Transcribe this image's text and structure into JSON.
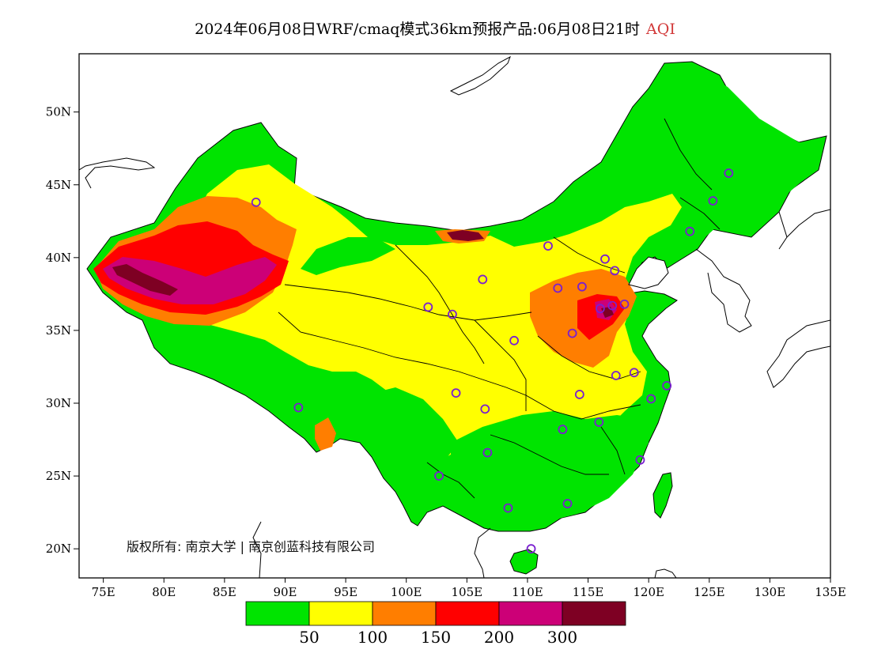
{
  "title": {
    "main": "2024年06月08日WRF/cmaq模式36km预报产品:06月08日21时",
    "product": "AQI"
  },
  "axes": {
    "y_ticks": [
      {
        "value": 50,
        "label": "50N"
      },
      {
        "value": 45,
        "label": "45N"
      },
      {
        "value": 40,
        "label": "40N"
      },
      {
        "value": 35,
        "label": "35N"
      },
      {
        "value": 30,
        "label": "30N"
      },
      {
        "value": 25,
        "label": "25N"
      },
      {
        "value": 20,
        "label": "20N"
      }
    ],
    "x_ticks": [
      {
        "value": 75,
        "label": "75E"
      },
      {
        "value": 80,
        "label": "80E"
      },
      {
        "value": 85,
        "label": "85E"
      },
      {
        "value": 90,
        "label": "90E"
      },
      {
        "value": 95,
        "label": "95E"
      },
      {
        "value": 100,
        "label": "100E"
      },
      {
        "value": 105,
        "label": "105E"
      },
      {
        "value": 110,
        "label": "110E"
      },
      {
        "value": 115,
        "label": "115E"
      },
      {
        "value": 120,
        "label": "120E"
      },
      {
        "value": 125,
        "label": "125E"
      },
      {
        "value": 130,
        "label": "130E"
      },
      {
        "value": 135,
        "label": "135E"
      }
    ],
    "lon_range": [
      73,
      135
    ],
    "lat_range": [
      18,
      54
    ]
  },
  "legend": {
    "colors": [
      "#00e400",
      "#ffff00",
      "#ff7e00",
      "#ff0000",
      "#cc0077",
      "#7e0023"
    ],
    "labels": [
      "50",
      "100",
      "150",
      "200",
      "300"
    ]
  },
  "copyright": "版权所有: 南京大学 | 南京创蓝科技有限公司",
  "colors": {
    "good": "#00e400",
    "moderate": "#ffff00",
    "usg": "#ff7e00",
    "unhealthy": "#ff0000",
    "very_unhealthy": "#cc0077",
    "hazardous": "#7e0023",
    "station": "#7a1fd0"
  }
}
